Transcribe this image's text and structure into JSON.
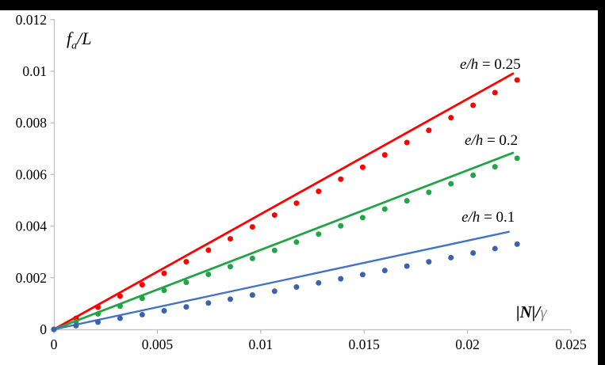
{
  "frame": {
    "top_bar_color": "#000000",
    "right_bar_color": "#000000",
    "background": "#ffffff"
  },
  "chart_data": {
    "type": "scatter",
    "title": "",
    "grid": false,
    "legend_position": "inline-annotations",
    "axis_color": "#BFBFBF",
    "text_color": "#000000",
    "x_axis": {
      "label_main": "|N|/",
      "label_gamma": "γ",
      "range": [
        0,
        0.025
      ],
      "ticks": [
        0,
        0.005,
        0.01,
        0.015,
        0.02,
        0.025
      ],
      "tick_labels": [
        "0",
        "0.005",
        "0.01",
        "0.015",
        "0.02",
        "0.025"
      ]
    },
    "y_axis": {
      "label_f": "f",
      "label_sub": "a",
      "label_rest": "/L",
      "range": [
        0,
        0.012
      ],
      "ticks": [
        0,
        0.002,
        0.004,
        0.006,
        0.008,
        0.01,
        0.012
      ],
      "tick_labels": [
        "0",
        "0.002",
        "0.004",
        "0.006",
        "0.008",
        "0.01",
        "0.012"
      ]
    },
    "x_points": [
      0,
      0.00107,
      0.00213,
      0.0032,
      0.00427,
      0.00533,
      0.0064,
      0.00747,
      0.00853,
      0.0096,
      0.01067,
      0.01173,
      0.0128,
      0.01387,
      0.01493,
      0.016,
      0.01707,
      0.01813,
      0.0192,
      0.02027,
      0.02133,
      0.0224
    ],
    "series": [
      {
        "name": "e/h = 0.25",
        "color": "#FF0000",
        "dot_color": "#FF0000",
        "line": {
          "x0": 0,
          "y0": 0,
          "x1": 0.0222,
          "y1": 0.00991
        },
        "dots_y": [
          0,
          0.00043,
          0.00086,
          0.00129,
          0.00173,
          0.00217,
          0.00262,
          0.00307,
          0.00351,
          0.00397,
          0.00443,
          0.00489,
          0.00535,
          0.00582,
          0.00628,
          0.00676,
          0.00724,
          0.00771,
          0.0082,
          0.00868,
          0.00917,
          0.00966
        ]
      },
      {
        "name": "e/h = 0.2",
        "color": "#21A546",
        "dot_color": "#21A546",
        "line": {
          "x0": 0,
          "y0": 0,
          "x1": 0.0222,
          "y1": 0.00684
        },
        "dots_y": [
          0,
          0.0003,
          0.0006,
          0.0009,
          0.0012,
          0.00151,
          0.00182,
          0.00213,
          0.00243,
          0.00275,
          0.00306,
          0.00338,
          0.00369,
          0.00401,
          0.00433,
          0.00466,
          0.00498,
          0.00531,
          0.00564,
          0.00597,
          0.0063,
          0.00663
        ]
      },
      {
        "name": "e/h = 0.1",
        "color": "#4472C4",
        "dot_color": "#3A62AD",
        "line": {
          "x0": 0,
          "y0": 0,
          "x1": 0.022,
          "y1": 0.00378
        },
        "dots_y": [
          0,
          0.00014,
          0.00028,
          0.00043,
          0.00057,
          0.00072,
          0.00087,
          0.00102,
          0.00117,
          0.00133,
          0.00148,
          0.00164,
          0.0018,
          0.00196,
          0.00212,
          0.00228,
          0.00245,
          0.00262,
          0.00278,
          0.00296,
          0.00313,
          0.0033
        ]
      }
    ],
    "annotations": [
      {
        "var": "e/h",
        "eq": " = 0.25",
        "x": 0.0211,
        "y": 0.01028
      },
      {
        "var": "e/h",
        "eq": " = 0.2",
        "x": 0.02115,
        "y": 0.00733
      },
      {
        "var": "e/h",
        "eq": " = 0.1",
        "x": 0.021,
        "y": 0.00436
      }
    ]
  }
}
